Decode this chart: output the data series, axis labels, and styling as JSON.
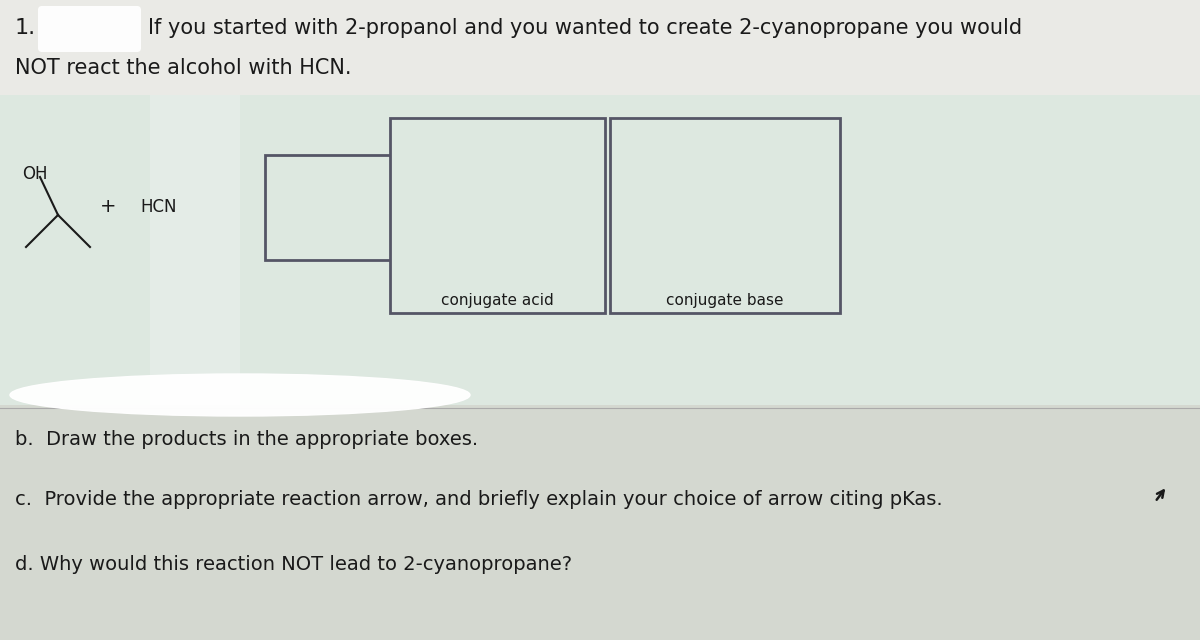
{
  "bg_color_top": "#e8e8e4",
  "bg_color_reaction": "#dde8e0",
  "bg_color_bottom": "#d4d8d0",
  "box_edge_color": "#555566",
  "text_color": "#1a1a1a",
  "title_line1": "If you started with 2-propanol and you wanted to create 2-cyanopropane you would",
  "title_line2": "NOT react the alcohol with HCN.",
  "label_number": "1.",
  "oh_label": "OH",
  "hcn_label": "HCN",
  "plus_label": "+",
  "conjugate_acid_label": "conjugate acid",
  "conjugate_base_label": "conjugate base",
  "question_b": "b.  Draw the products in the appropriate boxes.",
  "question_c": "c.  Provide the appropriate reaction arrow, and briefly explain your choice of arrow citing pKas.",
  "question_d": "d. Why would this reaction NOT lead to 2-cyanopropane?",
  "font_size_title": 15,
  "font_size_labels": 12,
  "font_size_questions": 14,
  "font_size_box_labels": 11,
  "font_size_number": 16
}
